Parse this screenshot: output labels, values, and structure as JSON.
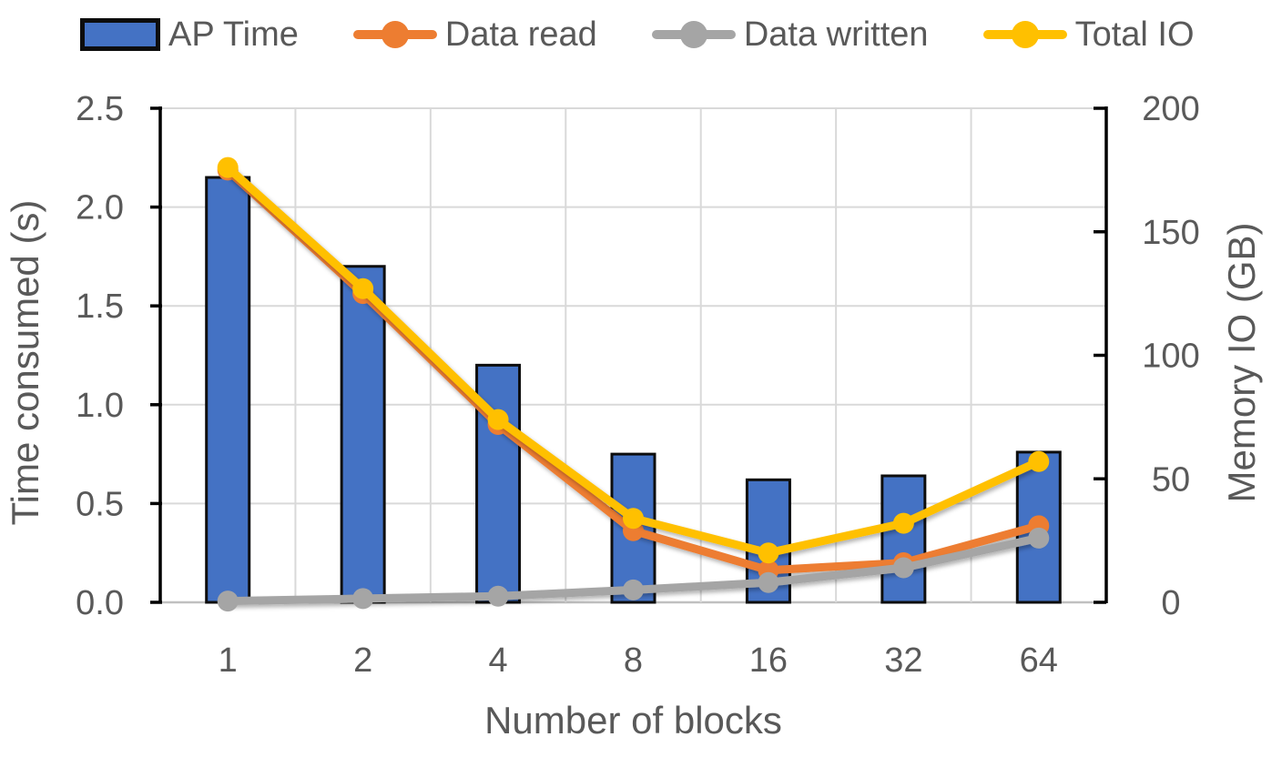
{
  "chart_data": {
    "type": "combo_bar_line",
    "categories": [
      "1",
      "2",
      "4",
      "8",
      "16",
      "32",
      "64"
    ],
    "xlabel": "Number of blocks",
    "left_axis": {
      "label": "Time consumed (s)",
      "min": 0,
      "max": 2.5,
      "tick_labels": [
        "0.0",
        "0.5",
        "1.0",
        "1.5",
        "2.0",
        "2.5"
      ]
    },
    "right_axis": {
      "label": "Memory IO (GB)",
      "min": 0,
      "max": 200,
      "tick_labels": [
        "0",
        "50",
        "100",
        "150",
        "200"
      ]
    },
    "grid": true,
    "legend_position": "top",
    "series": [
      {
        "name": "AP Time",
        "type": "bar",
        "axis": "left",
        "color": "#4472C4",
        "border_color": "#0d0d0d",
        "values": [
          2.15,
          1.7,
          1.2,
          0.75,
          0.62,
          0.64,
          0.76
        ]
      },
      {
        "name": "Data read",
        "type": "line",
        "axis": "right",
        "color": "#ED7D31",
        "values": [
          175,
          125,
          72,
          29,
          13,
          16,
          31
        ]
      },
      {
        "name": "Data written",
        "type": "line",
        "axis": "right",
        "color": "#A5A5A5",
        "values": [
          0.5,
          1.5,
          2.5,
          5,
          8,
          14,
          26
        ]
      },
      {
        "name": "Total IO",
        "type": "line",
        "axis": "right",
        "color": "#FFC000",
        "values": [
          176,
          127,
          74,
          34,
          20,
          32,
          57
        ]
      }
    ]
  },
  "styles": {
    "text_color": "#595959",
    "gridline_color": "#D9D9D9",
    "bottom_axis_color": "#C0C0C0",
    "axis_color": "#000000",
    "background": "#FFFFFF"
  }
}
